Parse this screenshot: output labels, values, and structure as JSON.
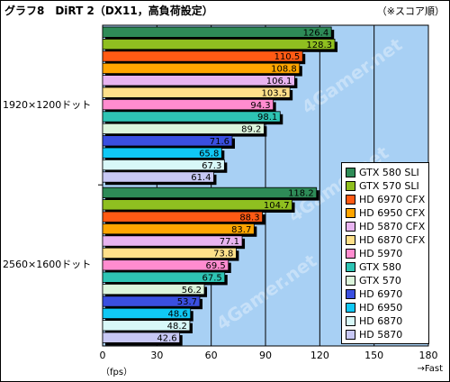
{
  "title": "グラフ8　DiRT 2（DX11，高負荷設定）",
  "note": "（※スコア順）",
  "chart_data": {
    "type": "bar",
    "orientation": "horizontal",
    "xlim": [
      0,
      180
    ],
    "xticks": [
      0,
      30,
      60,
      90,
      120,
      150,
      180
    ],
    "xunit": "（fps）",
    "xdirection": "→Fast",
    "grid": true,
    "legend_position": "right",
    "groups": [
      {
        "label": "1920×1200ドット",
        "bars": [
          {
            "name": "GTX 580 SLI",
            "value": 126.4
          },
          {
            "name": "GTX 570 SLI",
            "value": 128.3
          },
          {
            "name": "HD 6970 CFX",
            "value": 110.5
          },
          {
            "name": "HD 6950 CFX",
            "value": 108.8
          },
          {
            "name": "HD 5870 CFX",
            "value": 106.1
          },
          {
            "name": "HD 6870 CFX",
            "value": 103.5
          },
          {
            "name": "HD 5970",
            "value": 94.3
          },
          {
            "name": "GTX 580",
            "value": 98.1
          },
          {
            "name": "GTX 570",
            "value": 89.2
          },
          {
            "name": "HD 6970",
            "value": 71.6
          },
          {
            "name": "HD 6950",
            "value": 65.8
          },
          {
            "name": "HD 6870",
            "value": 67.3
          },
          {
            "name": "HD 5870",
            "value": 61.4
          }
        ]
      },
      {
        "label": "2560×1600ドット",
        "bars": [
          {
            "name": "GTX 580 SLI",
            "value": 118.2
          },
          {
            "name": "GTX 570 SLI",
            "value": 104.7
          },
          {
            "name": "HD 6970 CFX",
            "value": 88.3
          },
          {
            "name": "HD 6950 CFX",
            "value": 83.7
          },
          {
            "name": "HD 5870 CFX",
            "value": 77.1
          },
          {
            "name": "HD 6870 CFX",
            "value": 73.8
          },
          {
            "name": "HD 5970",
            "value": 69.5
          },
          {
            "name": "GTX 580",
            "value": 67.5
          },
          {
            "name": "GTX 570",
            "value": 56.2
          },
          {
            "name": "HD 6970",
            "value": 53.7
          },
          {
            "name": "HD 6950",
            "value": 48.6
          },
          {
            "name": "HD 6870",
            "value": 48.2
          },
          {
            "name": "HD 5870",
            "value": 42.6
          }
        ]
      }
    ],
    "series_colors": {
      "GTX 580 SLI": "#2e8b57",
      "GTX 570 SLI": "#8fbf20",
      "HD 6970 CFX": "#ff5a14",
      "HD 6950 CFX": "#ffa500",
      "HD 5870 CFX": "#e8b4f0",
      "HD 6870 CFX": "#ffe08a",
      "HD 5970": "#ff8ccf",
      "GTX 580": "#2ec4b4",
      "GTX 570": "#dcf5dc",
      "HD 6970": "#3a4fe0",
      "HD 6950": "#10c8f5",
      "HD 6870": "#d8f8f8",
      "HD 5870": "#c8c8f5"
    },
    "legend": [
      "GTX 580 SLI",
      "GTX 570 SLI",
      "HD 6970 CFX",
      "HD 6950 CFX",
      "HD 5870 CFX",
      "HD 6870 CFX",
      "HD 5970",
      "GTX 580",
      "GTX 570",
      "HD 6970",
      "HD 6950",
      "HD 6870",
      "HD 5870"
    ],
    "plot_background": "#a8d0f4",
    "watermark": "4Gamer.net"
  }
}
